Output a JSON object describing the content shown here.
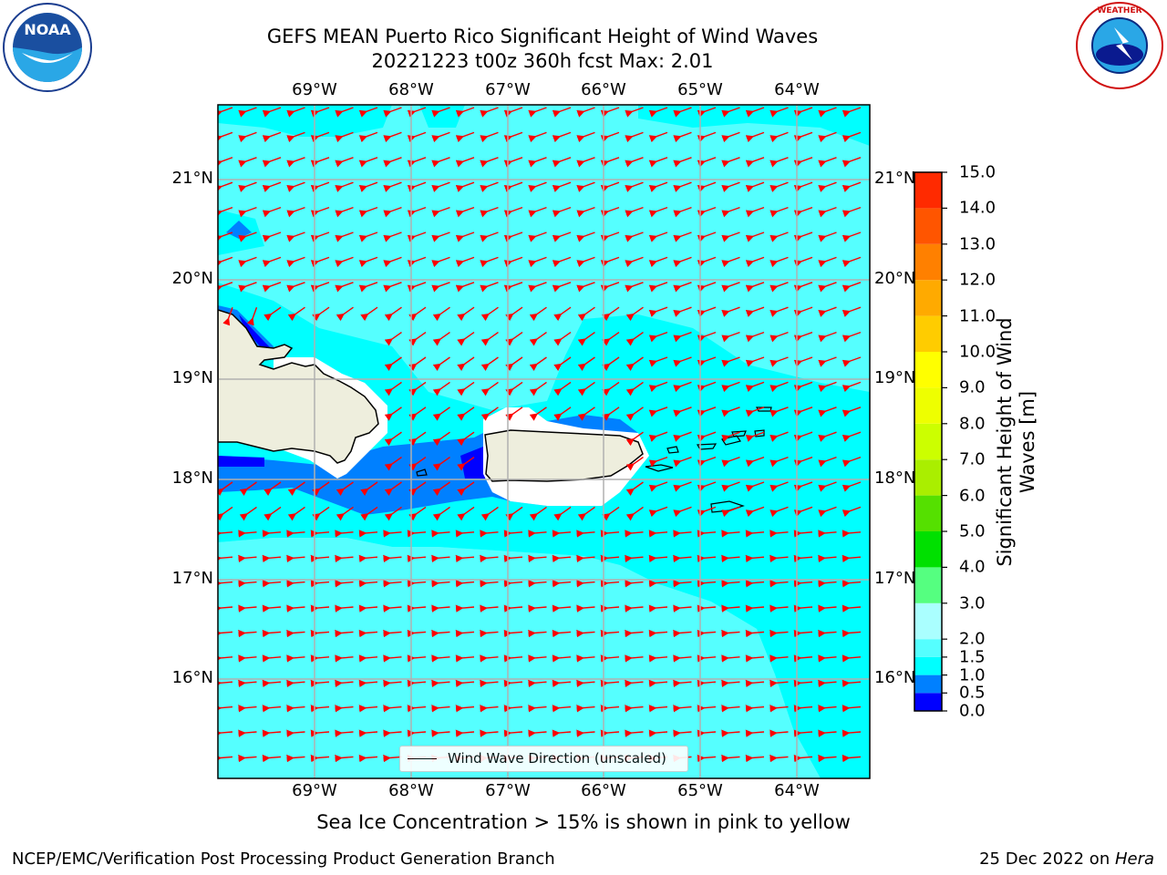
{
  "title": {
    "line1": "GEFS MEAN Puerto Rico Significant Height of Wind Waves",
    "line2": "20221223 t00z 360h fcst   Max: 2.01"
  },
  "logos": {
    "left": "noaa-logo",
    "right": "nws-logo"
  },
  "map": {
    "lon_ticks": [
      "69°W",
      "68°W",
      "67°W",
      "66°W",
      "65°W",
      "64°W"
    ],
    "lat_ticks": [
      "21°N",
      "20°N",
      "19°N",
      "18°N",
      "17°N",
      "16°N"
    ],
    "legend": "Wind Wave Direction (unscaled)",
    "ocean_color": "#55ffff",
    "land_color": "#eeeedd",
    "arrow_color": "#ff0000"
  },
  "colorbar": {
    "title": "Significant Height of Wind Waves [m]",
    "levels": [
      "0.0",
      "0.5",
      "1.0",
      "1.5",
      "2.0",
      "3.0",
      "4.0",
      "5.0",
      "6.0",
      "7.0",
      "8.0",
      "9.0",
      "10.0",
      "11.0",
      "12.0",
      "13.0",
      "14.0",
      "15.0"
    ],
    "colors": [
      "#0000ff",
      "#0080ff",
      "#00ffff",
      "#55ffff",
      "#aaffff",
      "#55ff80",
      "#00e000",
      "#55e000",
      "#aaee00",
      "#ccff00",
      "#eeff00",
      "#ffff00",
      "#ffcc00",
      "#ffaa00",
      "#ff8000",
      "#ff5500",
      "#ff2a00",
      "#ff0000"
    ]
  },
  "subnote": "Sea Ice Concentration > 15% is shown in pink to yellow",
  "footer": {
    "left": "NCEP/EMC/Verification Post Processing Product Generation Branch",
    "right_text": "25 Dec 2022 on ",
    "right_italic": "Hera"
  }
}
